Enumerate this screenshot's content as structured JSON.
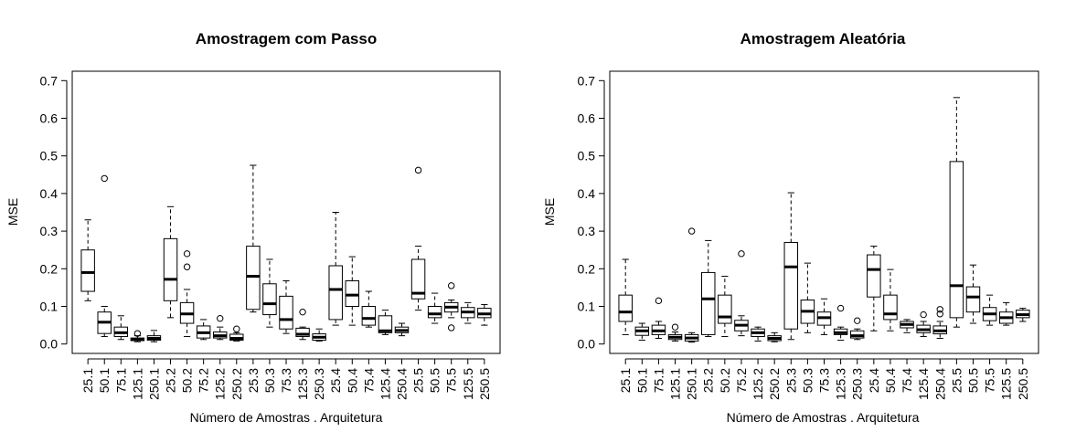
{
  "chart_data": [
    {
      "type": "boxplot",
      "title": "Amostragem com Passo",
      "xlabel": "Número de Amostras . Arquitetura",
      "ylabel": "MSE",
      "ylim": [
        -0.025,
        0.725
      ],
      "yticks": [
        "0.0",
        "0.1",
        "0.2",
        "0.3",
        "0.4",
        "0.5",
        "0.6",
        "0.7"
      ],
      "grid": false,
      "categories": [
        "25.1",
        "50.1",
        "75.1",
        "125.1",
        "250.1",
        "25.2",
        "50.2",
        "75.2",
        "125.2",
        "250.2",
        "25.3",
        "50.3",
        "75.3",
        "125.3",
        "250.3",
        "25.4",
        "50.4",
        "75.4",
        "125.4",
        "250.4",
        "25.5",
        "50.5",
        "75.5",
        "125.5",
        "250.5"
      ],
      "boxes": [
        {
          "min": 0.115,
          "q1": 0.14,
          "median": 0.19,
          "q3": 0.25,
          "max": 0.33,
          "outliers": []
        },
        {
          "min": 0.02,
          "q1": 0.028,
          "median": 0.058,
          "q3": 0.085,
          "max": 0.1,
          "outliers": [
            0.44
          ]
        },
        {
          "min": 0.012,
          "q1": 0.02,
          "median": 0.03,
          "q3": 0.045,
          "max": 0.075,
          "outliers": []
        },
        {
          "min": 0.006,
          "q1": 0.009,
          "median": 0.012,
          "q3": 0.016,
          "max": 0.022,
          "outliers": [
            0.028
          ]
        },
        {
          "min": 0.006,
          "q1": 0.01,
          "median": 0.015,
          "q3": 0.022,
          "max": 0.036,
          "outliers": []
        },
        {
          "min": 0.07,
          "q1": 0.115,
          "median": 0.172,
          "q3": 0.28,
          "max": 0.365,
          "outliers": []
        },
        {
          "min": 0.02,
          "q1": 0.055,
          "median": 0.08,
          "q3": 0.11,
          "max": 0.145,
          "outliers": [
            0.205,
            0.24
          ]
        },
        {
          "min": 0.012,
          "q1": 0.016,
          "median": 0.03,
          "q3": 0.048,
          "max": 0.065,
          "outliers": []
        },
        {
          "min": 0.012,
          "q1": 0.016,
          "median": 0.022,
          "q3": 0.032,
          "max": 0.045,
          "outliers": [
            0.068
          ]
        },
        {
          "min": 0.008,
          "q1": 0.01,
          "median": 0.015,
          "q3": 0.026,
          "max": 0.03,
          "outliers": [
            0.04
          ]
        },
        {
          "min": 0.085,
          "q1": 0.092,
          "median": 0.18,
          "q3": 0.26,
          "max": 0.475,
          "outliers": []
        },
        {
          "min": 0.045,
          "q1": 0.078,
          "median": 0.107,
          "q3": 0.16,
          "max": 0.225,
          "outliers": []
        },
        {
          "min": 0.028,
          "q1": 0.04,
          "median": 0.065,
          "q3": 0.127,
          "max": 0.168,
          "outliers": []
        },
        {
          "min": 0.012,
          "q1": 0.02,
          "median": 0.026,
          "q3": 0.042,
          "max": 0.045,
          "outliers": [
            0.085
          ]
        },
        {
          "min": 0.008,
          "q1": 0.01,
          "median": 0.018,
          "q3": 0.027,
          "max": 0.04,
          "outliers": []
        },
        {
          "min": 0.05,
          "q1": 0.065,
          "median": 0.145,
          "q3": 0.208,
          "max": 0.35,
          "outliers": []
        },
        {
          "min": 0.05,
          "q1": 0.1,
          "median": 0.13,
          "q3": 0.168,
          "max": 0.232,
          "outliers": []
        },
        {
          "min": 0.045,
          "q1": 0.05,
          "median": 0.068,
          "q3": 0.1,
          "max": 0.14,
          "outliers": []
        },
        {
          "min": 0.025,
          "q1": 0.03,
          "median": 0.035,
          "q3": 0.075,
          "max": 0.09,
          "outliers": []
        },
        {
          "min": 0.022,
          "q1": 0.03,
          "median": 0.036,
          "q3": 0.045,
          "max": 0.055,
          "outliers": []
        },
        {
          "min": 0.09,
          "q1": 0.12,
          "median": 0.135,
          "q3": 0.225,
          "max": 0.26,
          "outliers": [
            0.462
          ]
        },
        {
          "min": 0.055,
          "q1": 0.07,
          "median": 0.08,
          "q3": 0.1,
          "max": 0.135,
          "outliers": []
        },
        {
          "min": 0.07,
          "q1": 0.085,
          "median": 0.098,
          "q3": 0.11,
          "max": 0.117,
          "outliers": [
            0.155,
            0.043
          ]
        },
        {
          "min": 0.055,
          "q1": 0.07,
          "median": 0.085,
          "q3": 0.097,
          "max": 0.11,
          "outliers": []
        },
        {
          "min": 0.05,
          "q1": 0.07,
          "median": 0.08,
          "q3": 0.095,
          "max": 0.105,
          "outliers": []
        }
      ]
    },
    {
      "type": "boxplot",
      "title": "Amostragem Aleatória",
      "xlabel": "Número de Amostras . Arquitetura",
      "ylabel": "MSE",
      "ylim": [
        -0.025,
        0.725
      ],
      "yticks": [
        "0.0",
        "0.1",
        "0.2",
        "0.3",
        "0.4",
        "0.5",
        "0.6",
        "0.7"
      ],
      "grid": false,
      "categories": [
        "25.1",
        "50.1",
        "75.1",
        "125.1",
        "250.1",
        "25.2",
        "50.2",
        "75.2",
        "125.2",
        "250.2",
        "25.3",
        "50.3",
        "75.3",
        "125.3",
        "250.3",
        "25.4",
        "50.4",
        "75.4",
        "125.4",
        "250.4",
        "25.5",
        "50.5",
        "75.5",
        "125.5",
        "250.5"
      ],
      "boxes": [
        {
          "min": 0.025,
          "q1": 0.06,
          "median": 0.085,
          "q3": 0.13,
          "max": 0.225,
          "outliers": []
        },
        {
          "min": 0.01,
          "q1": 0.023,
          "median": 0.035,
          "q3": 0.045,
          "max": 0.055,
          "outliers": []
        },
        {
          "min": 0.015,
          "q1": 0.025,
          "median": 0.035,
          "q3": 0.05,
          "max": 0.06,
          "outliers": [
            0.115
          ]
        },
        {
          "min": 0.008,
          "q1": 0.012,
          "median": 0.018,
          "q3": 0.025,
          "max": 0.032,
          "outliers": [
            0.045
          ]
        },
        {
          "min": 0.005,
          "q1": 0.008,
          "median": 0.016,
          "q3": 0.025,
          "max": 0.03,
          "outliers": [
            0.3
          ]
        },
        {
          "min": 0.02,
          "q1": 0.025,
          "median": 0.12,
          "q3": 0.19,
          "max": 0.275,
          "outliers": []
        },
        {
          "min": 0.02,
          "q1": 0.055,
          "median": 0.072,
          "q3": 0.13,
          "max": 0.18,
          "outliers": []
        },
        {
          "min": 0.022,
          "q1": 0.035,
          "median": 0.05,
          "q3": 0.063,
          "max": 0.075,
          "outliers": [
            0.24
          ]
        },
        {
          "min": 0.008,
          "q1": 0.02,
          "median": 0.03,
          "q3": 0.04,
          "max": 0.045,
          "outliers": []
        },
        {
          "min": 0.006,
          "q1": 0.009,
          "median": 0.015,
          "q3": 0.022,
          "max": 0.03,
          "outliers": []
        },
        {
          "min": 0.012,
          "q1": 0.04,
          "median": 0.205,
          "q3": 0.27,
          "max": 0.402,
          "outliers": []
        },
        {
          "min": 0.03,
          "q1": 0.055,
          "median": 0.087,
          "q3": 0.117,
          "max": 0.215,
          "outliers": []
        },
        {
          "min": 0.025,
          "q1": 0.05,
          "median": 0.07,
          "q3": 0.085,
          "max": 0.12,
          "outliers": []
        },
        {
          "min": 0.01,
          "q1": 0.025,
          "median": 0.03,
          "q3": 0.04,
          "max": 0.045,
          "outliers": [
            0.095
          ]
        },
        {
          "min": 0.012,
          "q1": 0.016,
          "median": 0.022,
          "q3": 0.035,
          "max": 0.04,
          "outliers": [
            0.062
          ]
        },
        {
          "min": 0.035,
          "q1": 0.125,
          "median": 0.198,
          "q3": 0.237,
          "max": 0.26,
          "outliers": []
        },
        {
          "min": 0.035,
          "q1": 0.065,
          "median": 0.08,
          "q3": 0.13,
          "max": 0.198,
          "outliers": []
        },
        {
          "min": 0.03,
          "q1": 0.043,
          "median": 0.052,
          "q3": 0.06,
          "max": 0.065,
          "outliers": []
        },
        {
          "min": 0.02,
          "q1": 0.03,
          "median": 0.038,
          "q3": 0.05,
          "max": 0.06,
          "outliers": [
            0.078
          ]
        },
        {
          "min": 0.015,
          "q1": 0.027,
          "median": 0.035,
          "q3": 0.048,
          "max": 0.06,
          "outliers": [
            0.08,
            0.092
          ]
        },
        {
          "min": 0.045,
          "q1": 0.07,
          "median": 0.155,
          "q3": 0.485,
          "max": 0.655,
          "outliers": []
        },
        {
          "min": 0.055,
          "q1": 0.085,
          "median": 0.125,
          "q3": 0.152,
          "max": 0.21,
          "outliers": []
        },
        {
          "min": 0.05,
          "q1": 0.062,
          "median": 0.08,
          "q3": 0.097,
          "max": 0.13,
          "outliers": []
        },
        {
          "min": 0.05,
          "q1": 0.055,
          "median": 0.07,
          "q3": 0.085,
          "max": 0.11,
          "outliers": []
        },
        {
          "min": 0.06,
          "q1": 0.07,
          "median": 0.078,
          "q3": 0.09,
          "max": 0.095,
          "outliers": []
        }
      ]
    }
  ]
}
